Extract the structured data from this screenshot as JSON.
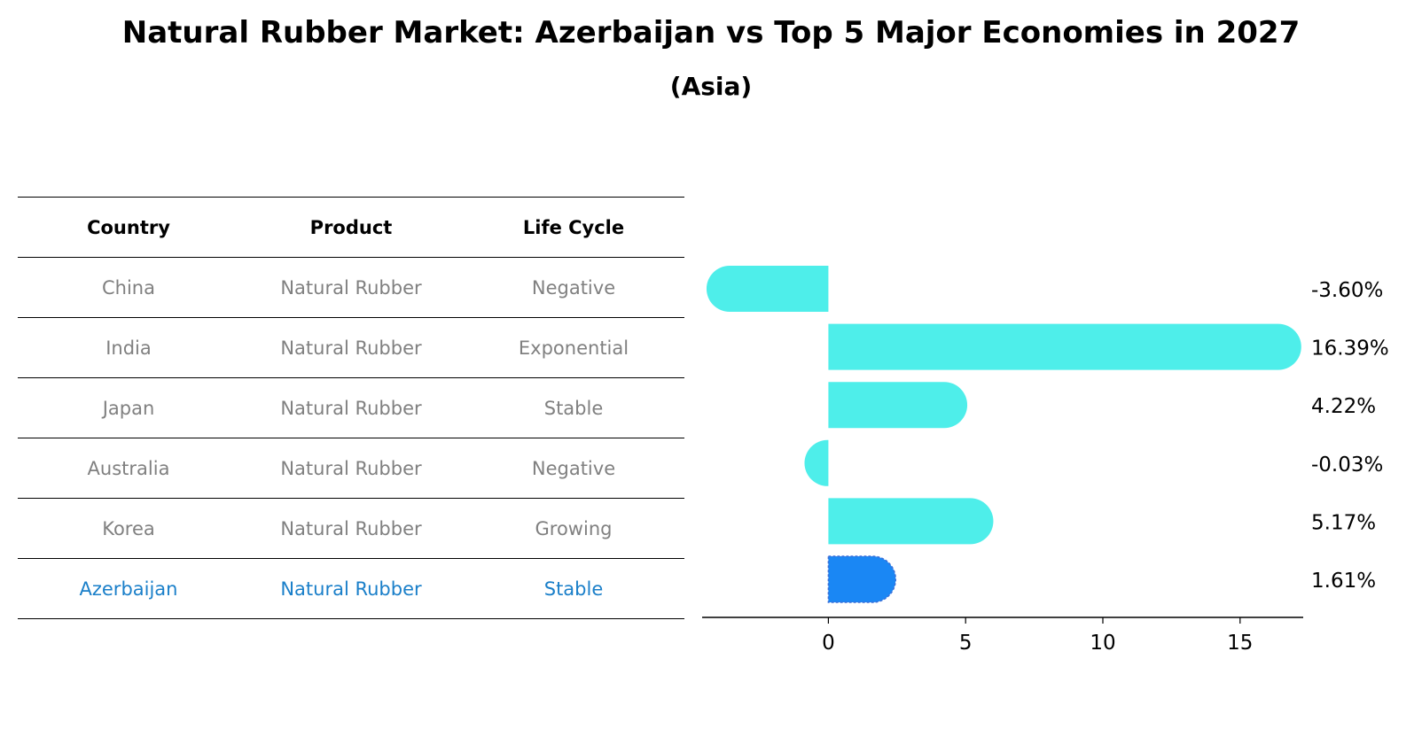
{
  "title": "Natural Rubber Market: Azerbaijan vs Top 5 Major Economies in 2027",
  "subtitle": "(Asia)",
  "table": {
    "headers": [
      "Country",
      "Product",
      "Life Cycle"
    ],
    "rows": [
      {
        "country": "China",
        "product": "Natural Rubber",
        "life_cycle": "Negative"
      },
      {
        "country": "India",
        "product": "Natural Rubber",
        "life_cycle": "Exponential"
      },
      {
        "country": "Japan",
        "product": "Natural Rubber",
        "life_cycle": "Stable"
      },
      {
        "country": "Australia",
        "product": "Natural Rubber",
        "life_cycle": "Negative"
      },
      {
        "country": "Korea",
        "product": "Natural Rubber",
        "life_cycle": "Growing"
      },
      {
        "country": "Azerbaijan",
        "product": "Natural Rubber",
        "life_cycle": "Stable"
      }
    ],
    "highlight_row": 5,
    "text_color": "#808080",
    "highlight_color": "#1a7fc9"
  },
  "chart_data": {
    "type": "bar",
    "orientation": "horizontal",
    "categories": [
      "China",
      "India",
      "Japan",
      "Australia",
      "Korea",
      "Azerbaijan"
    ],
    "values": [
      -3.6,
      16.39,
      4.22,
      -0.03,
      5.17,
      1.61
    ],
    "value_labels": [
      "-3.60%",
      "16.39%",
      "4.22%",
      "-0.03%",
      "5.17%",
      "1.61%"
    ],
    "xlim": [
      -4.6,
      17.3
    ],
    "xticks": [
      0,
      5,
      10,
      15
    ],
    "xtick_labels": [
      "0",
      "5",
      "10",
      "15"
    ],
    "bar_color": "#4eeeea",
    "highlight_color": "#1a87f4",
    "highlight_index": 5,
    "grid": false,
    "xlabel": "",
    "ylabel": ""
  }
}
